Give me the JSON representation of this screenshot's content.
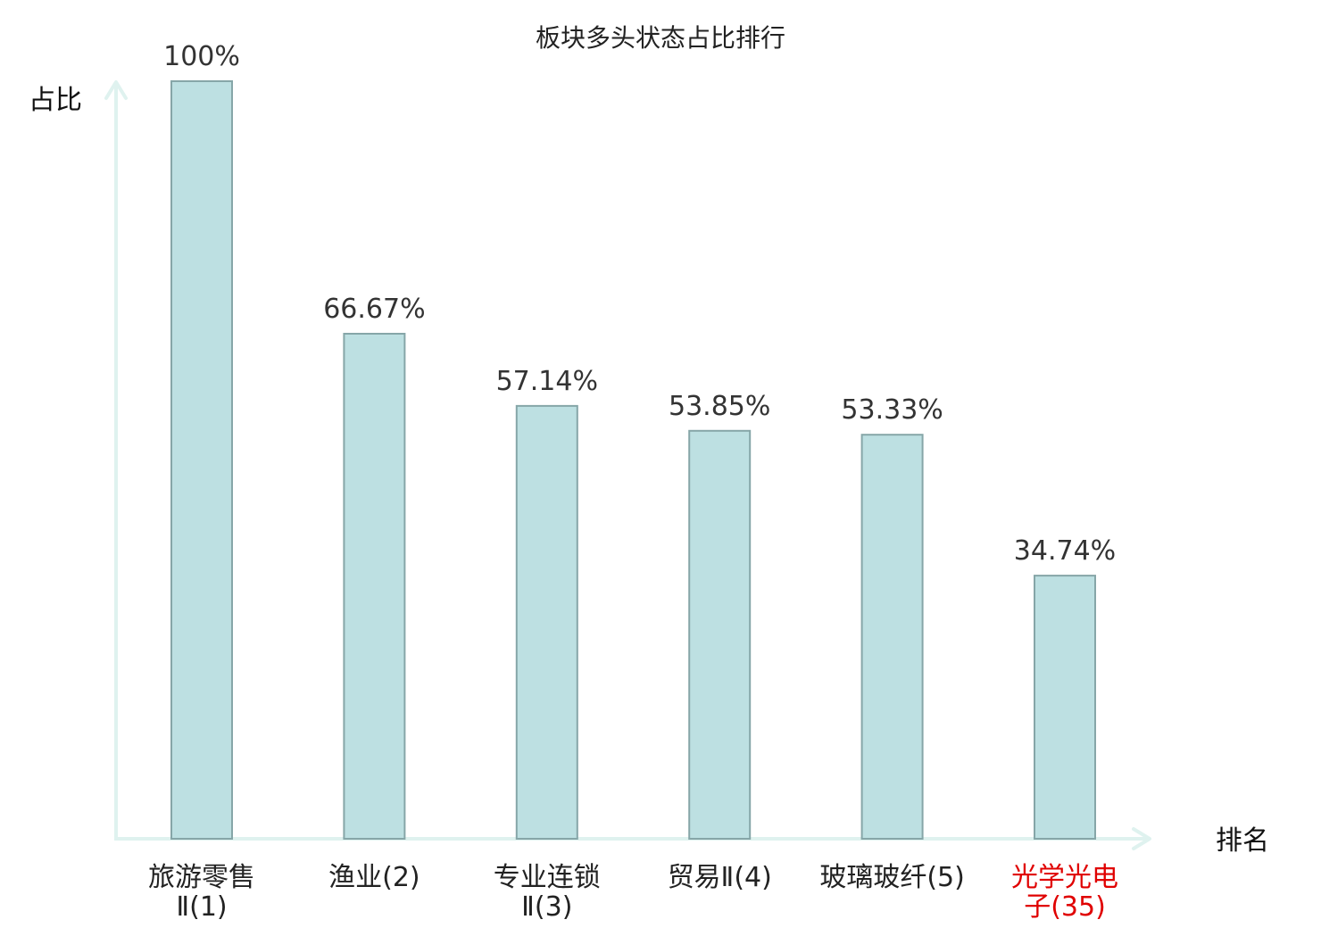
{
  "chart_data": {
    "type": "bar",
    "title": "板块多头状态占比排行",
    "xlabel": "排名",
    "ylabel": "占比",
    "ylim": [
      0,
      100
    ],
    "categories": [
      {
        "name": "旅游零售Ⅱ",
        "rank": "(1)",
        "lines": [
          "旅游零售",
          "Ⅱ(1)"
        ],
        "highlight": false
      },
      {
        "name": "渔业",
        "rank": "(2)",
        "lines": [
          "渔业(2)"
        ],
        "highlight": false
      },
      {
        "name": "专业连锁Ⅱ",
        "rank": "(3)",
        "lines": [
          "专业连锁",
          "Ⅱ(3)"
        ],
        "highlight": false
      },
      {
        "name": "贸易Ⅱ",
        "rank": "(4)",
        "lines": [
          "贸易Ⅱ(4)"
        ],
        "highlight": false
      },
      {
        "name": "玻璃玻纤",
        "rank": "(5)",
        "lines": [
          "玻璃玻纤(5)"
        ],
        "highlight": false
      },
      {
        "name": "光学光电子",
        "rank": "(35)",
        "lines": [
          "光学光电",
          "子(35)"
        ],
        "highlight": true
      }
    ],
    "values": [
      100,
      66.67,
      57.14,
      53.85,
      53.33,
      34.74
    ],
    "value_labels": [
      "100%",
      "66.67%",
      "57.14%",
      "53.85%",
      "53.33%",
      "34.74%"
    ],
    "grid": false,
    "legend": "none"
  },
  "colors": {
    "bar_fill": "#bde0e2",
    "bar_stroke": "#86a6a8",
    "axis": "#dff2ef",
    "highlight_text": "#e00000",
    "text": "#222222"
  }
}
